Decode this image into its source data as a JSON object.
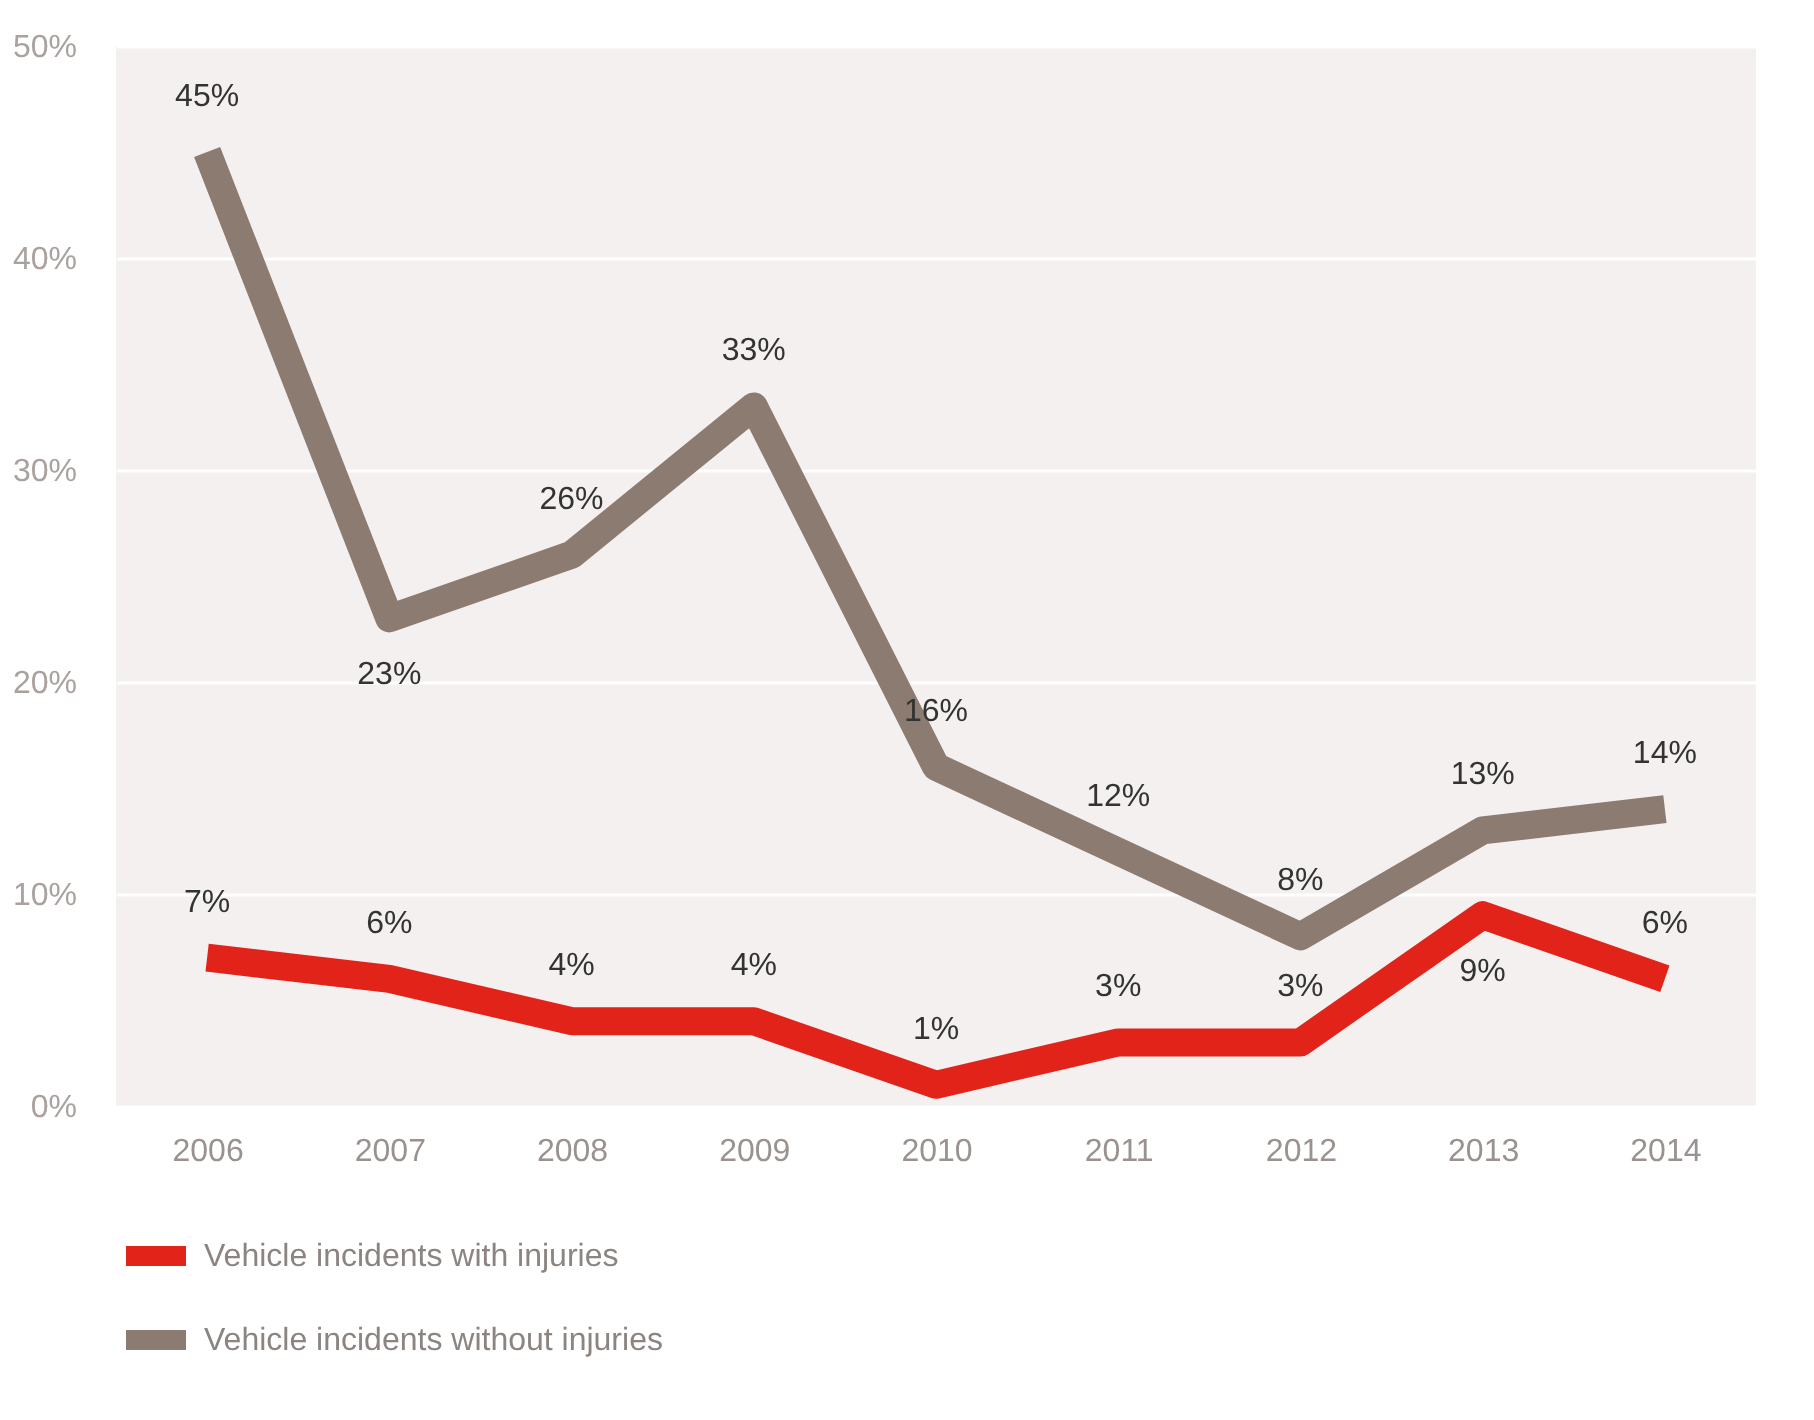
{
  "chart_data": {
    "type": "line",
    "categories": [
      "2006",
      "2007",
      "2008",
      "2009",
      "2010",
      "2011",
      "2012",
      "2013",
      "2014"
    ],
    "series": [
      {
        "name": "Vehicle incidents with injuries",
        "color": "#e2231a",
        "values": [
          7,
          6,
          4,
          4,
          1,
          3,
          3,
          9,
          6
        ],
        "value_labels": [
          "7%",
          "6%",
          "4%",
          "4%",
          "1%",
          "3%",
          "3%",
          "9%",
          "6%"
        ]
      },
      {
        "name": "Vehicle incidents without injuries",
        "color": "#8c7b70",
        "values": [
          45,
          23,
          26,
          33,
          16,
          12,
          8,
          13,
          14
        ],
        "value_labels": [
          "45%",
          "23%",
          "26%",
          "33%",
          "16%",
          "12%",
          "8%",
          "13%",
          "14%"
        ]
      }
    ],
    "ylim": [
      0,
      50
    ],
    "yticks": [
      {
        "value": 0,
        "label": "0%"
      },
      {
        "value": 10,
        "label": "10%"
      },
      {
        "value": 20,
        "label": "20%"
      },
      {
        "value": 30,
        "label": "30%"
      },
      {
        "value": 40,
        "label": "40%"
      },
      {
        "value": 50,
        "label": "50%"
      }
    ],
    "grid": "y",
    "legend": "bottom left",
    "marker": "none",
    "line_style": "solid"
  }
}
